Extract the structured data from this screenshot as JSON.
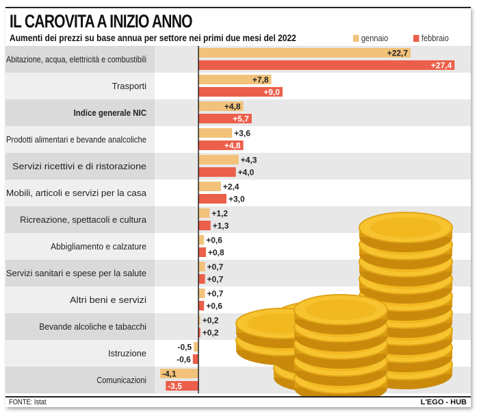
{
  "header": {
    "title": "IL CAROVITA A INIZIO ANNO",
    "subtitle": "Aumenti dei prezzi su base annua per settore nei primi due mesi del 2022"
  },
  "footer": {
    "source": "FONTE: Istat",
    "brand": "L'EGO - HUB"
  },
  "colors": {
    "gennaio": "#f2c27a",
    "febbraio": "#ec5f4a"
  },
  "chart_data": {
    "type": "bar",
    "orientation": "horizontal",
    "title": "IL CAROVITA A INIZIO ANNO",
    "categories": [
      "Abitazione, acqua, elettricità e combustibili",
      "Trasporti",
      "Indice generale NIC",
      "Prodotti alimentari e bevande analcoliche",
      "Servizi ricettivi e di ristorazione",
      "Mobili, articoli e servizi per la casa",
      "Ricreazione, spettacoli e cultura",
      "Abbigliamento e calzature",
      "Servizi sanitari e spese per la salute",
      "Altri beni e servizi",
      "Bevande alcoliche e tabacchi",
      "Istruzione",
      "Comunicazioni"
    ],
    "series": [
      {
        "name": "gennaio",
        "values": [
          22.7,
          7.8,
          4.8,
          3.6,
          4.3,
          2.4,
          1.2,
          0.6,
          0.7,
          0.7,
          0.2,
          -0.5,
          -4.1
        ],
        "labels": [
          "+22,7",
          "+7,8",
          "+4,8",
          "+3,6",
          "+4,3",
          "+2,4",
          "+1,2",
          "+0,6",
          "+0,7",
          "+0,7",
          "+0,2",
          "-0,5",
          "-4,1"
        ]
      },
      {
        "name": "febbraio",
        "values": [
          27.4,
          9.0,
          5.7,
          4.8,
          4.0,
          3.0,
          1.3,
          0.8,
          0.7,
          0.6,
          0.2,
          -0.6,
          -3.5
        ],
        "labels": [
          "+27,4",
          "+9,0",
          "+5,7",
          "+4,8",
          "+4,0",
          "+3,0",
          "+1,3",
          "+0,8",
          "+0,7",
          "+0,6",
          "+0,2",
          "-0,6",
          "-3,5"
        ]
      }
    ],
    "legend": "top-right",
    "grid": false,
    "unit": "%"
  }
}
